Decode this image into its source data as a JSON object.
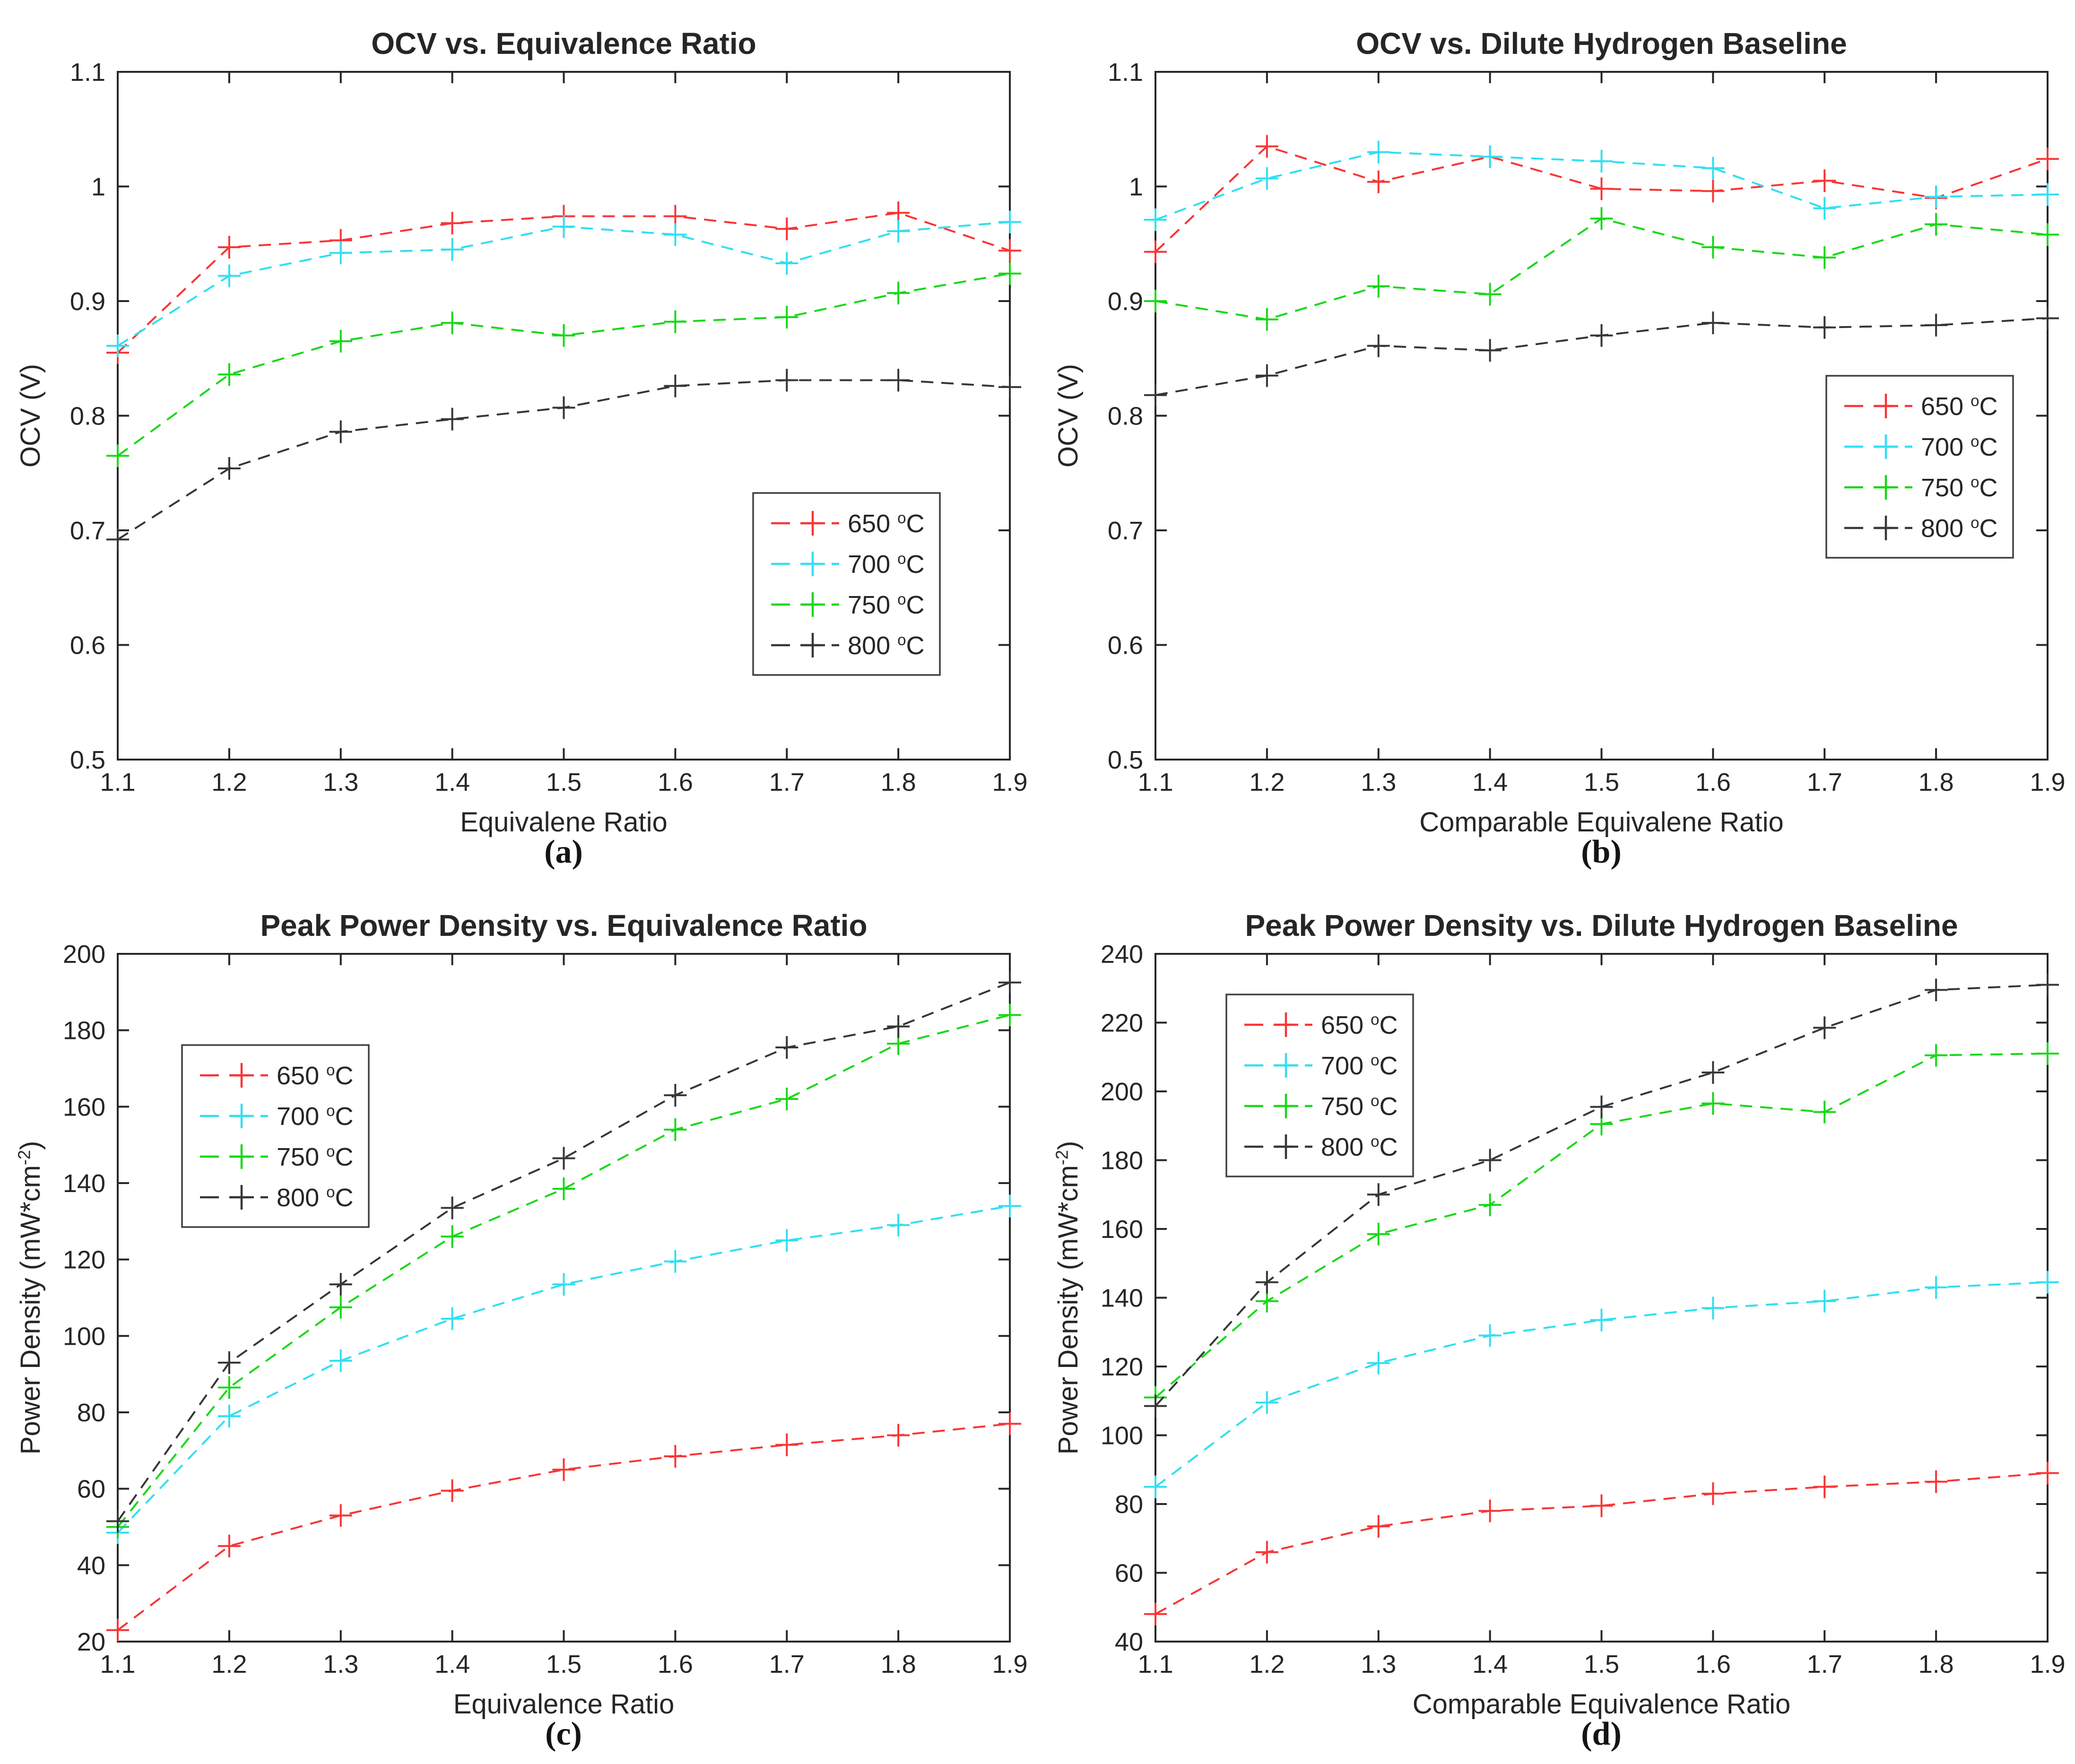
{
  "style": {
    "axis_color": "#262626",
    "text_color": "#262626",
    "background": "#ffffff"
  },
  "chart_data": [
    {
      "type": "line",
      "sublabel": "(a)",
      "title": "OCV vs. Equivalence Ratio",
      "xlabel": "Equivalene Ratio",
      "ylabel_parts": [
        {
          "t": "OCV (V)"
        }
      ],
      "xlim": [
        1.1,
        1.9
      ],
      "ylim": [
        0.5,
        1.1
      ],
      "x": [
        1.1,
        1.2,
        1.3,
        1.4,
        1.5,
        1.6,
        1.7,
        1.8,
        1.9
      ],
      "xticks": [
        "1.1",
        "1.2",
        "1.3",
        "1.4",
        "1.5",
        "1.6",
        "1.7",
        "1.8",
        "1.9"
      ],
      "yticks": [
        "0.5",
        "0.6",
        "0.7",
        "0.8",
        "0.9",
        "1",
        "1.1"
      ],
      "grid": false,
      "marker": "+",
      "linestyle": "dashed",
      "legend_position": "bottom-right",
      "legend_xy": {
        "x": 1593,
        "y": 1043
      },
      "series": [
        {
          "id": "650C",
          "legend": [
            {
              "t": "650 "
            },
            {
              "t": "o",
              "sup": true
            },
            {
              "t": "C"
            }
          ],
          "color": "#f93535",
          "values": [
            0.855,
            0.947,
            0.953,
            0.968,
            0.974,
            0.974,
            0.963,
            0.977,
            0.944
          ]
        },
        {
          "id": "700C",
          "legend": [
            {
              "t": "700 "
            },
            {
              "t": "o",
              "sup": true
            },
            {
              "t": "C"
            }
          ],
          "color": "#30dff2",
          "values": [
            0.861,
            0.922,
            0.942,
            0.945,
            0.965,
            0.958,
            0.933,
            0.961,
            0.969
          ]
        },
        {
          "id": "750C",
          "legend": [
            {
              "t": "750 "
            },
            {
              "t": "o",
              "sup": true
            },
            {
              "t": "C"
            }
          ],
          "color": "#17d817",
          "values": [
            0.765,
            0.836,
            0.865,
            0.881,
            0.87,
            0.882,
            0.886,
            0.907,
            0.924
          ]
        },
        {
          "id": "800C",
          "legend": [
            {
              "t": "800 "
            },
            {
              "t": "o",
              "sup": true
            },
            {
              "t": "C"
            }
          ],
          "color": "#363636",
          "values": [
            0.692,
            0.754,
            0.786,
            0.797,
            0.807,
            0.826,
            0.831,
            0.831,
            0.825
          ]
        }
      ]
    },
    {
      "type": "line",
      "sublabel": "(b)",
      "title": "OCV vs. Dilute Hydrogen Baseline",
      "xlabel": "Comparable Equivalene Ratio",
      "ylabel_parts": [
        {
          "t": "OCV (V)"
        }
      ],
      "xlim": [
        1.1,
        1.9
      ],
      "ylim": [
        0.5,
        1.1
      ],
      "x": [
        1.1,
        1.2,
        1.3,
        1.4,
        1.5,
        1.6,
        1.7,
        1.8,
        1.9
      ],
      "xticks": [
        "1.1",
        "1.2",
        "1.3",
        "1.4",
        "1.5",
        "1.6",
        "1.7",
        "1.8",
        "1.9"
      ],
      "yticks": [
        "0.5",
        "0.6",
        "0.7",
        "0.8",
        "0.9",
        "1",
        "1.1"
      ],
      "grid": false,
      "marker": "+",
      "linestyle": "dashed",
      "legend_position": "right",
      "legend_xy": {
        "x": 1668,
        "y": 795
      },
      "series": [
        {
          "id": "650C",
          "legend": [
            {
              "t": "650 "
            },
            {
              "t": "o",
              "sup": true
            },
            {
              "t": "C"
            }
          ],
          "color": "#f93535",
          "values": [
            0.943,
            1.035,
            1.004,
            1.026,
            0.998,
            0.996,
            1.005,
            0.99,
            1.024
          ]
        },
        {
          "id": "700C",
          "legend": [
            {
              "t": "700 "
            },
            {
              "t": "o",
              "sup": true
            },
            {
              "t": "C"
            }
          ],
          "color": "#30dff2",
          "values": [
            0.971,
            1.007,
            1.03,
            1.026,
            1.022,
            1.016,
            0.981,
            0.991,
            0.993
          ]
        },
        {
          "id": "750C",
          "legend": [
            {
              "t": "750 "
            },
            {
              "t": "o",
              "sup": true
            },
            {
              "t": "C"
            }
          ],
          "color": "#17d817",
          "values": [
            0.9,
            0.884,
            0.913,
            0.906,
            0.972,
            0.947,
            0.938,
            0.967,
            0.958
          ]
        },
        {
          "id": "800C",
          "legend": [
            {
              "t": "800 "
            },
            {
              "t": "o",
              "sup": true
            },
            {
              "t": "C"
            }
          ],
          "color": "#363636",
          "values": [
            0.818,
            0.835,
            0.861,
            0.857,
            0.87,
            0.881,
            0.877,
            0.879,
            0.885
          ]
        }
      ]
    },
    {
      "type": "line",
      "sublabel": "(c)",
      "title": "Peak Power Density vs. Equivalence Ratio",
      "xlabel": "Equivalence Ratio",
      "ylabel_parts": [
        {
          "t": "Power Density (mW*cm"
        },
        {
          "t": "-2",
          "sup": true
        },
        {
          "t": ")"
        }
      ],
      "xlim": [
        1.1,
        1.9
      ],
      "ylim": [
        20,
        200
      ],
      "x": [
        1.1,
        1.2,
        1.3,
        1.4,
        1.5,
        1.6,
        1.7,
        1.8,
        1.9
      ],
      "xticks": [
        "1.1",
        "1.2",
        "1.3",
        "1.4",
        "1.5",
        "1.6",
        "1.7",
        "1.8",
        "1.9"
      ],
      "yticks": [
        "20",
        "40",
        "60",
        "80",
        "100",
        "120",
        "140",
        "160",
        "180",
        "200"
      ],
      "grid": false,
      "marker": "+",
      "linestyle": "dashed",
      "legend_position": "top-left",
      "legend_xy": {
        "x": 385,
        "y": 345
      },
      "series": [
        {
          "id": "650C",
          "legend": [
            {
              "t": "650 "
            },
            {
              "t": "o",
              "sup": true
            },
            {
              "t": "C"
            }
          ],
          "color": "#f93535",
          "values": [
            23,
            45,
            53,
            59.5,
            65,
            68.5,
            71.5,
            74,
            77
          ]
        },
        {
          "id": "700C",
          "legend": [
            {
              "t": "700 "
            },
            {
              "t": "o",
              "sup": true
            },
            {
              "t": "C"
            }
          ],
          "color": "#30dff2",
          "values": [
            48.5,
            79,
            93.5,
            104.5,
            113.5,
            119.5,
            125,
            129,
            134
          ]
        },
        {
          "id": "750C",
          "legend": [
            {
              "t": "750 "
            },
            {
              "t": "o",
              "sup": true
            },
            {
              "t": "C"
            }
          ],
          "color": "#17d817",
          "values": [
            50,
            86.5,
            107.5,
            126,
            138.5,
            154,
            162,
            176.5,
            184
          ]
        },
        {
          "id": "800C",
          "legend": [
            {
              "t": "800 "
            },
            {
              "t": "o",
              "sup": true
            },
            {
              "t": "C"
            }
          ],
          "color": "#363636",
          "values": [
            51.5,
            93,
            113.5,
            133.5,
            146.5,
            163,
            175.5,
            181,
            192.5
          ]
        }
      ]
    },
    {
      "type": "line",
      "sublabel": "(d)",
      "title": "Peak Power Density vs. Dilute Hydrogen Baseline",
      "xlabel": "Comparable Equivalence Ratio",
      "ylabel_parts": [
        {
          "t": "Power Density (mW*cm"
        },
        {
          "t": "-2",
          "sup": true
        },
        {
          "t": ")"
        }
      ],
      "xlim": [
        1.1,
        1.9
      ],
      "ylim": [
        40,
        240
      ],
      "x": [
        1.1,
        1.2,
        1.3,
        1.4,
        1.5,
        1.6,
        1.7,
        1.8,
        1.9
      ],
      "xticks": [
        "1.1",
        "1.2",
        "1.3",
        "1.4",
        "1.5",
        "1.6",
        "1.7",
        "1.8",
        "1.9"
      ],
      "yticks": [
        "40",
        "60",
        "80",
        "100",
        "120",
        "140",
        "160",
        "180",
        "200",
        "220",
        "240"
      ],
      "grid": false,
      "marker": "+",
      "linestyle": "dashed",
      "legend_position": "top-left",
      "legend_xy": {
        "x": 399,
        "y": 238
      },
      "series": [
        {
          "id": "650C",
          "legend": [
            {
              "t": "650 "
            },
            {
              "t": "o",
              "sup": true
            },
            {
              "t": "C"
            }
          ],
          "color": "#f93535",
          "values": [
            48,
            66,
            73.5,
            78,
            79.5,
            83,
            85,
            86.5,
            89
          ]
        },
        {
          "id": "700C",
          "legend": [
            {
              "t": "700 "
            },
            {
              "t": "o",
              "sup": true
            },
            {
              "t": "C"
            }
          ],
          "color": "#30dff2",
          "values": [
            85,
            109.5,
            121,
            129,
            133.5,
            137,
            139,
            143,
            144.5
          ]
        },
        {
          "id": "750C",
          "legend": [
            {
              "t": "750 "
            },
            {
              "t": "o",
              "sup": true
            },
            {
              "t": "C"
            }
          ],
          "color": "#17d817",
          "values": [
            111,
            139,
            158.5,
            167,
            190.5,
            196.5,
            194,
            210.5,
            211
          ]
        },
        {
          "id": "800C",
          "legend": [
            {
              "t": "800 "
            },
            {
              "t": "o",
              "sup": true
            },
            {
              "t": "C"
            }
          ],
          "color": "#363636",
          "values": [
            108.5,
            144.5,
            170,
            180,
            195.5,
            205.5,
            218.5,
            229.5,
            231
          ]
        }
      ]
    }
  ]
}
